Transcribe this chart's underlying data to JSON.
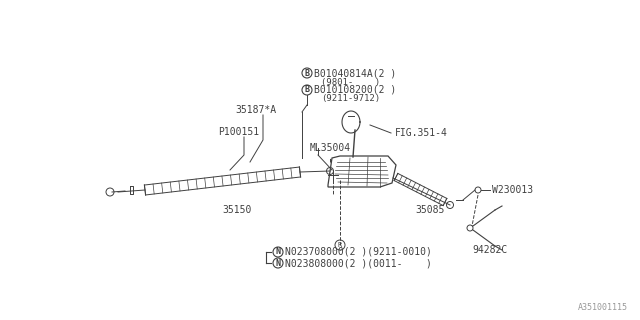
{
  "bg_color": "#ffffff",
  "line_color": "#404040",
  "watermark": "A351001115",
  "labels": {
    "bolt1": "B01040814A(2 )",
    "bolt1_year": "(9801-    )",
    "bolt2": "B010108200(2 )",
    "bolt2_year": "(9211-9712)",
    "part_35187": "35187*A",
    "part_P100151": "P100151",
    "part_ML35004": "ML35004",
    "fig_ref": "FIG.351-4",
    "part_35150": "35150",
    "part_35085": "35085",
    "part_W230013": "W230013",
    "part_94282C": "94282C",
    "nut1": "N023708000(2 )(9211-0010)",
    "nut2": "N023808000(2 )(0011-    )"
  },
  "font_size_main": 7,
  "font_size_small": 6.5,
  "font_size_watermark": 6
}
